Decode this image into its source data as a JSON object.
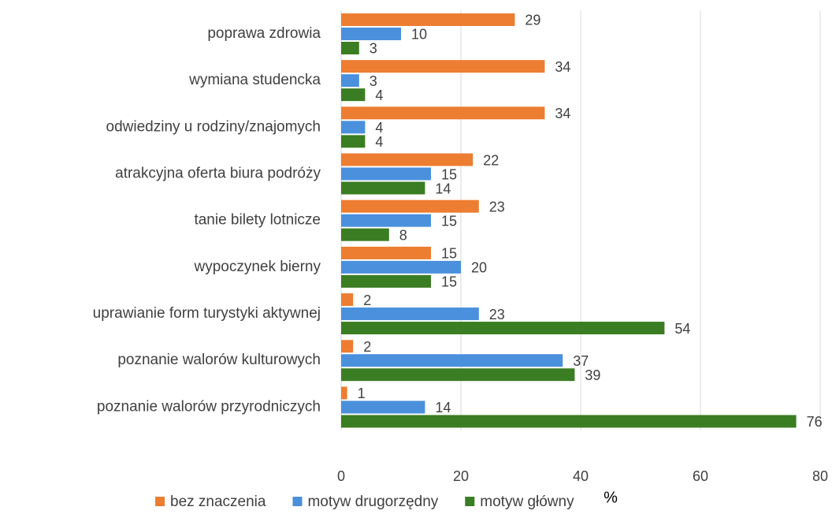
{
  "chart_data": {
    "type": "bar",
    "orientation": "horizontal",
    "categories": [
      "poprawa zdrowia",
      "wymiana studencka",
      "odwiedziny u rodziny/znajomych",
      "atrakcyjna oferta biura podróży",
      "tanie bilety lotnicze",
      "wypoczynek bierny",
      "uprawianie form turystyki aktywnej",
      "poznanie walorów kulturowych",
      "poznanie walorów przyrodniczych"
    ],
    "series": [
      {
        "name": "bez znaczenia",
        "color": "#ed7d31",
        "values": [
          29,
          34,
          34,
          22,
          23,
          15,
          2,
          2,
          1
        ]
      },
      {
        "name": "motyw drugorzędny",
        "color": "#4a90dc",
        "values": [
          10,
          3,
          4,
          15,
          15,
          20,
          23,
          37,
          14
        ]
      },
      {
        "name": "motyw główny",
        "color": "#3a7d22",
        "values": [
          3,
          4,
          4,
          14,
          8,
          15,
          54,
          39,
          76
        ]
      }
    ],
    "xlabel": "%",
    "xlim": [
      0,
      80
    ],
    "xticks": [
      0,
      20,
      40,
      60,
      80
    ],
    "grid": true,
    "legend": "bottom"
  }
}
